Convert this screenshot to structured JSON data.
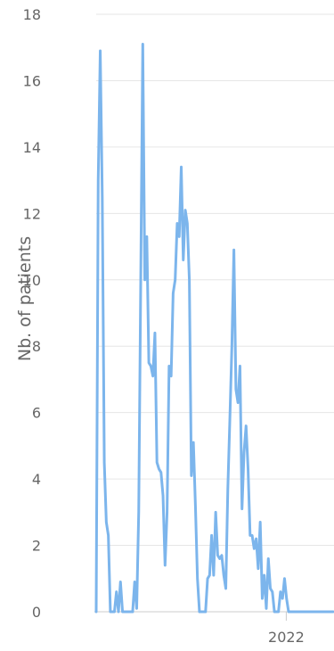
{
  "chart_data": {
    "type": "line",
    "title": "",
    "xlabel": "",
    "ylabel": "Nb. of patients",
    "ylim": [
      0,
      18
    ],
    "yticks": [
      "0",
      "2",
      "4",
      "6",
      "8",
      "10",
      "12",
      "14",
      "16",
      "18"
    ],
    "xticks": [
      {
        "label": "2022",
        "value": "2022-01-01"
      }
    ],
    "xlim": [
      "2020-03-15",
      "2022-06-15"
    ],
    "grid": true,
    "legend": "none",
    "colors": {
      "line": "#7cb5ec",
      "grid": "#e6e6e6",
      "axis": "#333333",
      "text": "#666666"
    },
    "series": [
      {
        "x": [
          "2020-03-15",
          "2020-03-22",
          "2020-03-29",
          "2020-04-05",
          "2020-04-12",
          "2020-04-19",
          "2020-04-26",
          "2020-05-03",
          "2020-05-10",
          "2020-05-17",
          "2020-05-24",
          "2020-05-31",
          "2020-06-07",
          "2020-06-14",
          "2020-06-21",
          "2020-06-28",
          "2020-07-05",
          "2020-07-12",
          "2020-07-19",
          "2020-07-26",
          "2020-08-02",
          "2020-08-09",
          "2020-08-16",
          "2020-08-23",
          "2020-08-30",
          "2020-09-06",
          "2020-09-13",
          "2020-09-20",
          "2020-09-27",
          "2020-10-04",
          "2020-10-11",
          "2020-10-18",
          "2020-10-25",
          "2020-11-01",
          "2020-11-08",
          "2020-11-15",
          "2020-11-22",
          "2020-11-29",
          "2020-12-06",
          "2020-12-13",
          "2020-12-20",
          "2020-12-27",
          "2021-01-03",
          "2021-01-10",
          "2021-01-17",
          "2021-01-24",
          "2021-01-31",
          "2021-02-07",
          "2021-02-14",
          "2021-02-21",
          "2021-02-28",
          "2021-03-07",
          "2021-03-14",
          "2021-03-21",
          "2021-03-28",
          "2021-04-04",
          "2021-04-11",
          "2021-04-18",
          "2021-04-25",
          "2021-05-02",
          "2021-05-09",
          "2021-05-16",
          "2021-05-23",
          "2021-05-30",
          "2021-06-06",
          "2021-06-13",
          "2021-06-20",
          "2021-06-27",
          "2021-07-04",
          "2021-07-11",
          "2021-07-18",
          "2021-07-25",
          "2021-08-01",
          "2021-08-08",
          "2021-08-15",
          "2021-08-22",
          "2021-08-29",
          "2021-09-05",
          "2021-09-12",
          "2021-09-19",
          "2021-09-26",
          "2021-10-03",
          "2021-10-10",
          "2021-10-17",
          "2021-10-24",
          "2021-10-31",
          "2021-11-07",
          "2021-11-14",
          "2021-11-21",
          "2021-11-28",
          "2021-12-05",
          "2021-12-12",
          "2021-12-19",
          "2021-12-26",
          "2022-01-02",
          "2022-01-09",
          "2022-01-16",
          "2022-01-23",
          "2022-01-30",
          "2022-02-06",
          "2022-02-13",
          "2022-02-20",
          "2022-02-27",
          "2022-03-06",
          "2022-03-13",
          "2022-03-20",
          "2022-03-27",
          "2022-04-03",
          "2022-04-10",
          "2022-04-17",
          "2022-04-24",
          "2022-05-01",
          "2022-05-08",
          "2022-05-15",
          "2022-05-22",
          "2022-05-29",
          "2022-06-05",
          "2022-06-12"
        ],
        "values": [
          0,
          13,
          16.9,
          12.5,
          4.5,
          2.7,
          2.3,
          0,
          0,
          0,
          0.6,
          0,
          0.9,
          0,
          0,
          0,
          0,
          0,
          0,
          0.9,
          0.1,
          3,
          10,
          17.1,
          10,
          11.3,
          7.5,
          7.4,
          7.1,
          8.4,
          4.5,
          4.3,
          4.2,
          3.5,
          1.4,
          3,
          7.4,
          7.1,
          9.6,
          10,
          11.7,
          11.3,
          13.4,
          10.6,
          12.1,
          11.7,
          10,
          4.1,
          5.1,
          3.2,
          1,
          0,
          0,
          0,
          0,
          1,
          1.1,
          2.3,
          1.1,
          3,
          1.7,
          1.6,
          1.7,
          1.1,
          0.7,
          3.7,
          5.8,
          8,
          10.9,
          6.7,
          6.3,
          7.4,
          3.1,
          4.8,
          5.6,
          4.3,
          2.3,
          2.3,
          1.9,
          2.2,
          1.3,
          2.7,
          0.4,
          1.1,
          0.1,
          1.6,
          0.7,
          0.6,
          0,
          0,
          0,
          0.6,
          0.4,
          1,
          0.4,
          0,
          0,
          0,
          0,
          0,
          0,
          0,
          0,
          0,
          0,
          0,
          0,
          0,
          0,
          0,
          0,
          0,
          0,
          0,
          0,
          0,
          0,
          0
        ]
      }
    ]
  }
}
